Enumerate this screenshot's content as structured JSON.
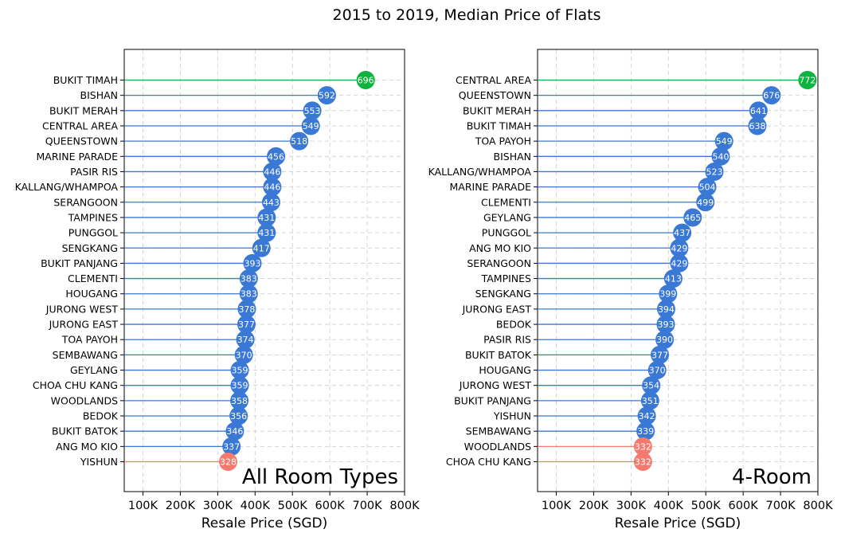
{
  "figure": {
    "title": "2015 to 2019, Median Price of Flats"
  },
  "colors": {
    "normal": "#3a78d6",
    "max": "#0db33f",
    "min": "#f4796e",
    "grid": "#cccccc"
  },
  "chart_data": [
    {
      "type": "lollipop",
      "annotation": "All Room Types",
      "xlabel": "Resale Price (SGD)",
      "xlim": [
        50000,
        800000
      ],
      "xticks": [
        100000,
        200000,
        300000,
        400000,
        500000,
        600000,
        700000,
        800000
      ],
      "xtick_labels": [
        "100K",
        "200K",
        "300K",
        "400K",
        "500K",
        "600K",
        "700K",
        "800K"
      ],
      "grid": true,
      "categories": [
        "BUKIT TIMAH",
        "BISHAN",
        "BUKIT MERAH",
        "CENTRAL AREA",
        "QUEENSTOWN",
        "MARINE PARADE",
        "PASIR RIS",
        "KALLANG/WHAMPOA",
        "SERANGOON",
        "TAMPINES",
        "PUNGGOL",
        "SENGKANG",
        "BUKIT PANJANG",
        "CLEMENTI",
        "HOUGANG",
        "JURONG WEST",
        "JURONG EAST",
        "TOA PAYOH",
        "SEMBAWANG",
        "GEYLANG",
        "CHOA CHU KANG",
        "WOODLANDS",
        "BEDOK",
        "BUKIT BATOK",
        "ANG MO KIO",
        "YISHUN"
      ],
      "values": [
        696,
        592,
        553,
        549,
        518,
        456,
        446,
        446,
        443,
        431,
        431,
        417,
        393,
        383,
        383,
        378,
        377,
        374,
        370,
        359,
        359,
        358,
        356,
        346,
        337,
        328
      ],
      "value_unit": "thousand SGD"
    },
    {
      "type": "lollipop",
      "annotation": "4-Room",
      "xlabel": "Resale Price (SGD)",
      "xlim": [
        50000,
        800000
      ],
      "xticks": [
        100000,
        200000,
        300000,
        400000,
        500000,
        600000,
        700000,
        800000
      ],
      "xtick_labels": [
        "100K",
        "200K",
        "300K",
        "400K",
        "500K",
        "600K",
        "700K",
        "800K"
      ],
      "grid": true,
      "categories": [
        "CENTRAL AREA",
        "QUEENSTOWN",
        "BUKIT MERAH",
        "BUKIT TIMAH",
        "TOA PAYOH",
        "BISHAN",
        "KALLANG/WHAMPOA",
        "MARINE PARADE",
        "CLEMENTI",
        "GEYLANG",
        "PUNGGOL",
        "ANG MO KIO",
        "SERANGOON",
        "TAMPINES",
        "SENGKANG",
        "JURONG EAST",
        "BEDOK",
        "PASIR RIS",
        "BUKIT BATOK",
        "HOUGANG",
        "JURONG WEST",
        "BUKIT PANJANG",
        "YISHUN",
        "SEMBAWANG",
        "WOODLANDS",
        "CHOA CHU KANG"
      ],
      "values": [
        772,
        676,
        641,
        638,
        549,
        540,
        523,
        504,
        499,
        465,
        437,
        429,
        429,
        413,
        399,
        394,
        393,
        390,
        377,
        370,
        354,
        351,
        342,
        339,
        332,
        332
      ],
      "value_unit": "thousand SGD"
    }
  ]
}
